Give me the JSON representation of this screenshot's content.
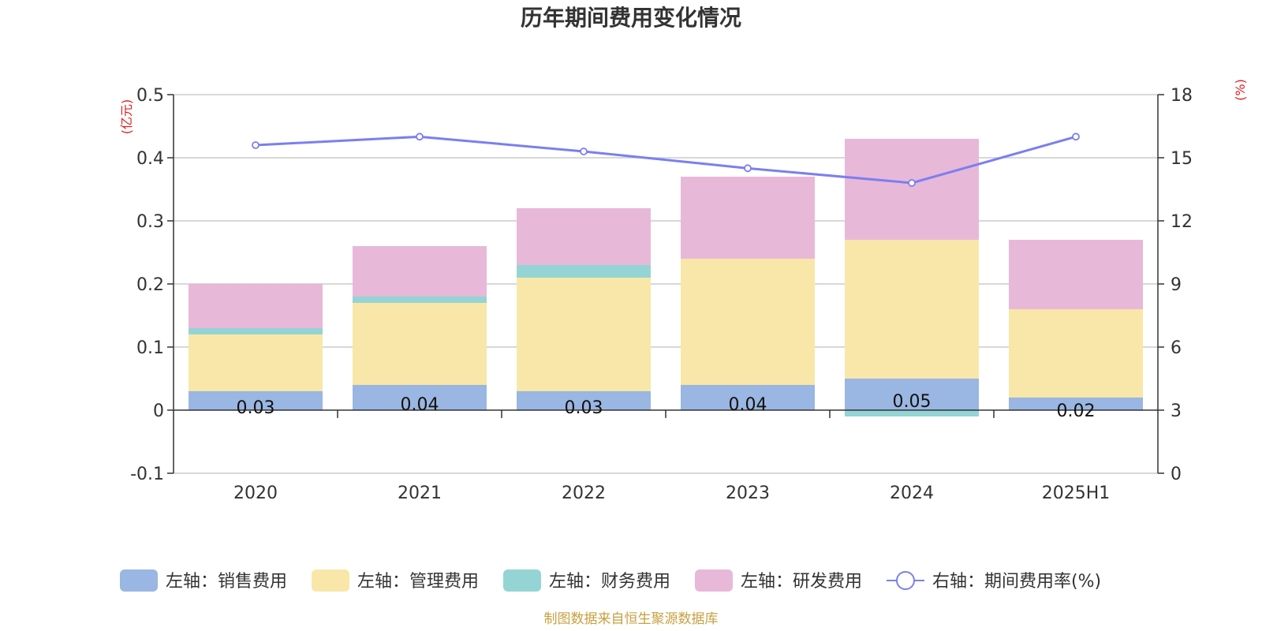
{
  "chart_data": {
    "type": "bar",
    "title": "历年期间费用变化情况",
    "categories": [
      "2020",
      "2021",
      "2022",
      "2023",
      "2024",
      "2025H1"
    ],
    "left_axis": {
      "unit": "(亿元)",
      "ylim": [
        -0.1,
        0.5
      ],
      "ticks": [
        "0.5",
        "0.4",
        "0.3",
        "0.2",
        "0.1",
        "0",
        "-0.1"
      ]
    },
    "right_axis": {
      "unit": "(%)",
      "ylim": [
        0,
        18
      ],
      "ticks": [
        "18",
        "15",
        "12",
        "9",
        "6",
        "3",
        "0"
      ]
    },
    "series": [
      {
        "name": "左轴：销售费用",
        "type": "bar",
        "axis": "left",
        "color": "#9ab6e2",
        "values": [
          0.03,
          0.04,
          0.03,
          0.04,
          0.05,
          0.02
        ],
        "labels": [
          "0.03",
          "0.04",
          "0.03",
          "0.04",
          "0.05",
          "0.02"
        ]
      },
      {
        "name": "左轴：管理费用",
        "type": "bar",
        "axis": "left",
        "color": "#f8e7a8",
        "values": [
          0.09,
          0.13,
          0.18,
          0.2,
          0.22,
          0.14
        ]
      },
      {
        "name": "左轴：财务费用",
        "type": "bar",
        "axis": "left",
        "color": "#95d4d4",
        "values": [
          0.01,
          0.01,
          0.02,
          0.0,
          -0.01,
          0.0
        ]
      },
      {
        "name": "左轴：研发费用",
        "type": "bar",
        "axis": "left",
        "color": "#e8b8d9",
        "values": [
          0.07,
          0.08,
          0.09,
          0.13,
          0.16,
          0.11
        ]
      },
      {
        "name": "右轴：期间费用率(%)",
        "type": "line",
        "axis": "right",
        "color": "#7b7ff0",
        "values": [
          15.6,
          16.0,
          15.3,
          14.5,
          13.8,
          16.0
        ]
      }
    ],
    "grid": true,
    "legend_position": "bottom"
  },
  "source_text": "制图数据来自恒生聚源数据库",
  "colors": {
    "unit_text": "#e02020",
    "source_text": "#c8a040",
    "axis": "#333333",
    "grid": "#cccccc"
  }
}
